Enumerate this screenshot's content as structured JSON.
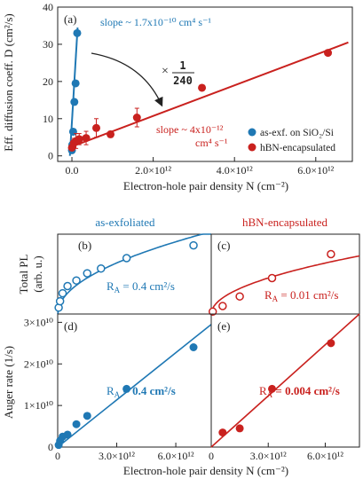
{
  "colors": {
    "blue": "#1f78b4",
    "red": "#c9211e"
  },
  "chart_data": [
    {
      "id": "a",
      "type": "scatter",
      "panel_label": "(a)",
      "xlabel": "Electron-hole pair density N (cm⁻²)",
      "ylabel": "Eff. diffusion coeff. D (cm²/s)",
      "xlim": [
        -0.35,
        6.9
      ],
      "ylim": [
        -1.5,
        40
      ],
      "xunit_exp": 12,
      "xticks": [
        0,
        2,
        4,
        6
      ],
      "xtick_labels": [
        "0.0",
        "2.0×10¹²",
        "4.0×10¹²",
        "6.0×10¹²"
      ],
      "yticks": [
        0,
        10,
        20,
        30,
        40
      ],
      "ytick_labels": [
        "0",
        "10",
        "20",
        "30",
        "40"
      ],
      "series": [
        {
          "name": "as-exf. on SiO₂/Si",
          "color": "blue",
          "x": [
            0.0,
            0.01,
            0.03,
            0.06,
            0.09,
            0.13
          ],
          "y": [
            1.5,
            3.0,
            6.5,
            14.5,
            19.5,
            33.0
          ],
          "yerr": [
            0,
            0,
            0,
            0,
            0,
            0
          ],
          "fit": {
            "x": [
              -0.05,
              0.14
            ],
            "y": [
              0.0,
              34.5
            ]
          }
        },
        {
          "name": "hBN-encapsulated",
          "color": "red",
          "x": [
            0.0,
            0.05,
            0.1,
            0.18,
            0.35,
            0.6,
            0.95,
            1.6,
            3.2,
            6.3
          ],
          "y": [
            2.2,
            3.5,
            4.0,
            4.5,
            4.8,
            7.5,
            5.8,
            10.3,
            18.3,
            27.7
          ],
          "yerr": [
            0.8,
            1.2,
            2.0,
            1.5,
            1.8,
            2.5,
            0.8,
            2.5,
            0,
            0
          ],
          "fit": {
            "x": [
              0.0,
              6.8
            ],
            "y": [
              2.5,
              30.5
            ]
          }
        }
      ],
      "annotations": {
        "blue_slope": "slope ~ 1.7x10⁻¹⁰ cm⁴ s⁻¹",
        "red_slope_a": "slope ~ 4x10⁻¹²",
        "red_slope_b": "cm⁴ s⁻¹",
        "ratio_times": "×",
        "ratio_num": "1",
        "ratio_den": "240"
      },
      "legend": "bottom-right"
    },
    {
      "id": "b",
      "type": "scatter",
      "panel_label": "(b)",
      "column_title": "as-exfoliated",
      "ylabel_line1": "Total PL",
      "ylabel_line2": "(arb. u.)",
      "color": "blue",
      "open_markers": true,
      "xlim": [
        0,
        7.8
      ],
      "ylim": [
        0,
        1.0
      ],
      "x": [
        0.05,
        0.12,
        0.25,
        0.5,
        0.95,
        1.5,
        2.2,
        3.5,
        6.9
      ],
      "y": [
        0.08,
        0.16,
        0.26,
        0.35,
        0.42,
        0.51,
        0.57,
        0.7,
        0.86
      ],
      "annotation_prefix": "R",
      "annotation_sub": "A",
      "annotation_value": " = 0.4 cm²/s"
    },
    {
      "id": "c",
      "type": "scatter",
      "panel_label": "(c)",
      "column_title": "hBN-encapsulated",
      "color": "red",
      "open_markers": true,
      "xlim": [
        0,
        7.8
      ],
      "ylim": [
        0,
        1.0
      ],
      "x": [
        0.08,
        0.6,
        1.5,
        3.2,
        6.3
      ],
      "y": [
        0.03,
        0.1,
        0.22,
        0.45,
        0.75
      ],
      "annotation_prefix": "R",
      "annotation_sub": "A",
      "annotation_value": " = 0.01 cm²/s"
    },
    {
      "id": "d",
      "type": "scatter",
      "panel_label": "(d)",
      "ylabel": "Auger rate (1/s)",
      "color": "blue",
      "xlim": [
        0,
        7.8
      ],
      "ylim": [
        0,
        3.2
      ],
      "yticks": [
        0,
        1,
        2,
        3
      ],
      "ytick_labels": [
        "0",
        "1×10¹⁰",
        "2×10¹⁰",
        "3×10¹⁰"
      ],
      "xticks": [
        0,
        3,
        6
      ],
      "xtick_labels": [
        "0",
        "3.0×10¹²",
        "6.0×10¹²"
      ],
      "x": [
        0.05,
        0.12,
        0.25,
        0.5,
        0.95,
        1.5,
        3.5,
        6.9
      ],
      "y": [
        0.05,
        0.15,
        0.25,
        0.3,
        0.55,
        0.75,
        1.4,
        2.4
      ],
      "fit": {
        "x": [
          0.0,
          7.8
        ],
        "y": [
          0.0,
          2.95
        ]
      },
      "annotation_prefix": "R",
      "annotation_sub": "A",
      "annotation_value": " = 0.4 cm²/s"
    },
    {
      "id": "e",
      "type": "scatter",
      "panel_label": "(e)",
      "color": "red",
      "xlim": [
        0,
        7.8
      ],
      "ylim": [
        0,
        3.2
      ],
      "xticks": [
        0,
        3,
        6
      ],
      "xtick_labels": [
        "0",
        "3.0×10¹²",
        "6.0×10¹²"
      ],
      "x": [
        0.6,
        1.5,
        3.2,
        6.3
      ],
      "y": [
        0.35,
        0.45,
        1.4,
        2.5
      ],
      "fit": {
        "x": [
          0.0,
          7.8
        ],
        "y": [
          0.0,
          3.2
        ]
      },
      "annotation_prefix": "R",
      "annotation_sub": "A",
      "annotation_value": " = 0.004 cm²/s"
    }
  ],
  "bottom_xlabel": "Electron-hole pair density N (cm⁻²)"
}
